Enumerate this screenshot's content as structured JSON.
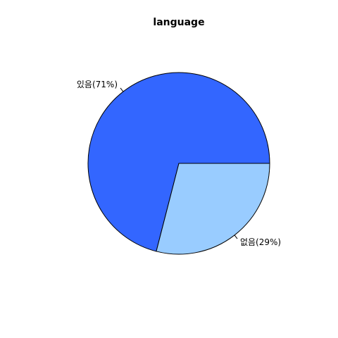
{
  "chart_data": {
    "type": "pie",
    "title": "language",
    "categories": [
      "있음",
      "없음"
    ],
    "values": [
      71,
      29
    ],
    "labels": [
      "있음(71%)",
      "없음(29%)"
    ],
    "colors": [
      "#3366FF",
      "#99CCFF"
    ],
    "border_color": "#000000",
    "legend": "none"
  }
}
